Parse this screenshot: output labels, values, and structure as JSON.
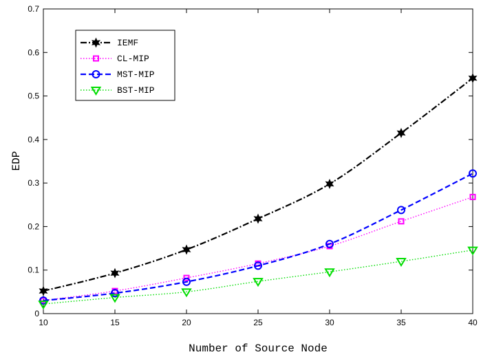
{
  "chart_data": {
    "type": "line",
    "title": "",
    "xlabel": "Number of Source Node",
    "ylabel": "EDP",
    "x": [
      10,
      15,
      20,
      25,
      30,
      35,
      40
    ],
    "xlim": [
      10,
      40
    ],
    "ylim": [
      0,
      0.7
    ],
    "xticks": [
      "10",
      "15",
      "20",
      "25",
      "30",
      "35",
      "40"
    ],
    "yticks": [
      "0",
      "0.1",
      "0.2",
      "0.3",
      "0.4",
      "0.5",
      "0.6",
      "0.7"
    ],
    "grid": false,
    "legend_position": "top-left",
    "series": [
      {
        "name": "IEMF",
        "values": [
          0.052,
          0.093,
          0.147,
          0.218,
          0.298,
          0.415,
          0.541
        ],
        "color": "#000000",
        "dash": "dashdot",
        "marker": "star"
      },
      {
        "name": "CL-MIP",
        "values": [
          0.03,
          0.052,
          0.082,
          0.115,
          0.155,
          0.212,
          0.268
        ],
        "color": "#ff00ff",
        "dash": "dotted",
        "marker": "square"
      },
      {
        "name": "MST-MIP",
        "values": [
          0.03,
          0.047,
          0.073,
          0.11,
          0.16,
          0.238,
          0.322
        ],
        "color": "#0000ff",
        "dash": "dashed",
        "marker": "circle"
      },
      {
        "name": "BST-MIP",
        "values": [
          0.022,
          0.037,
          0.05,
          0.074,
          0.096,
          0.12,
          0.146
        ],
        "color": "#00dd00",
        "dash": "dotted",
        "marker": "triangle"
      }
    ]
  }
}
